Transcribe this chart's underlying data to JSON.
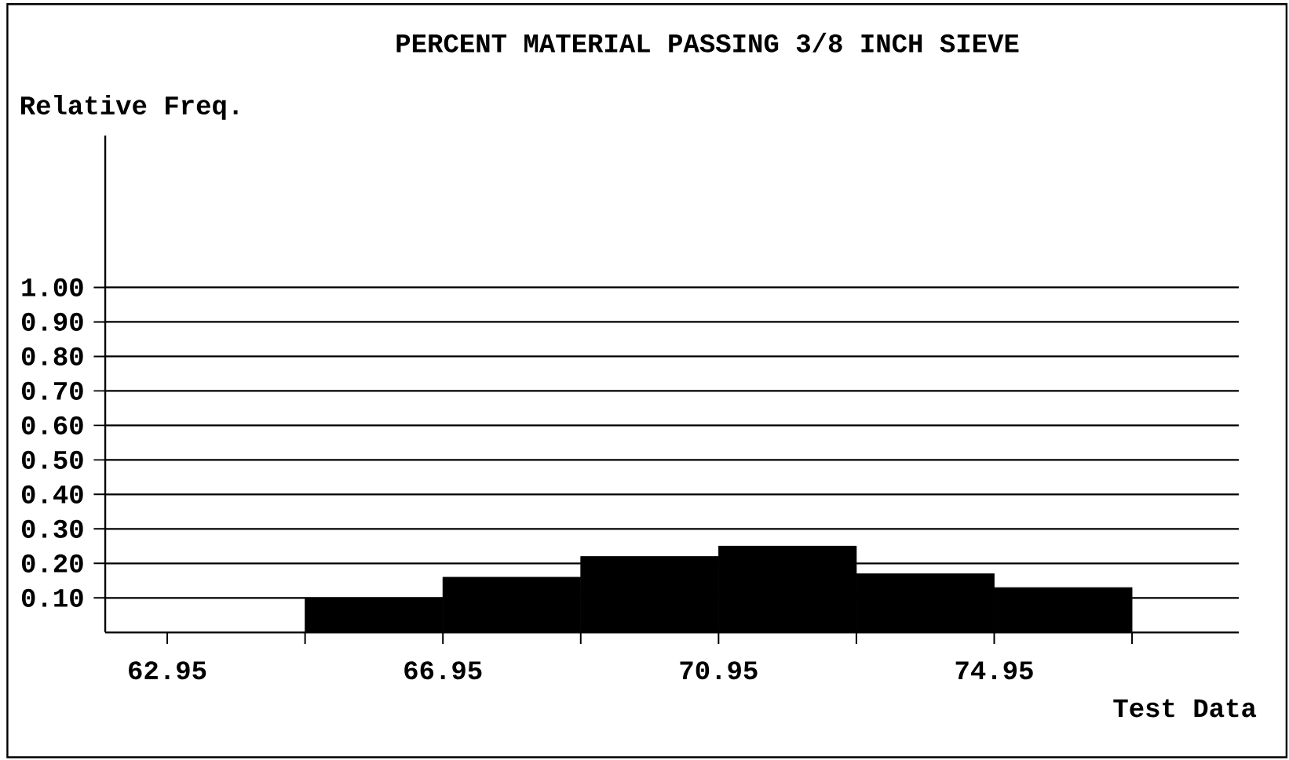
{
  "chart_data": {
    "type": "histogram",
    "title": "PERCENT MATERIAL PASSING 3/8 INCH SIEVE",
    "ylabel": "Relative Freq.",
    "xlabel": "Test Data",
    "bins": [
      64.95,
      66.95,
      68.95,
      70.95,
      72.95,
      74.95,
      76.95
    ],
    "values": [
      0.1,
      0.16,
      0.22,
      0.25,
      0.17,
      0.13
    ],
    "color": "#000000",
    "xlim": [
      62.05,
      78.5
    ],
    "ylim": [
      0,
      1.44
    ],
    "xticks": [
      62.95,
      {
        "value": 64.95,
        "label": null
      },
      66.95,
      {
        "value": 68.95,
        "label": null
      },
      70.95,
      {
        "value": 72.95,
        "label": null
      },
      74.95,
      {
        "value": 76.95,
        "label": null
      }
    ],
    "yticks": [
      {
        "value": 0.1,
        "label": "0.10"
      },
      {
        "value": 0.2,
        "label": "0.20"
      },
      {
        "value": 0.3,
        "label": "0.30"
      },
      {
        "value": 0.4,
        "label": "0.40"
      },
      {
        "value": 0.5,
        "label": "0.50"
      },
      {
        "value": 0.6,
        "label": "0.60"
      },
      {
        "value": 0.7,
        "label": "0.70"
      },
      {
        "value": 0.8,
        "label": "0.80"
      },
      {
        "value": 0.9,
        "label": "0.90"
      },
      {
        "value": 1.0,
        "label": "1.00"
      }
    ],
    "grid": "y"
  }
}
